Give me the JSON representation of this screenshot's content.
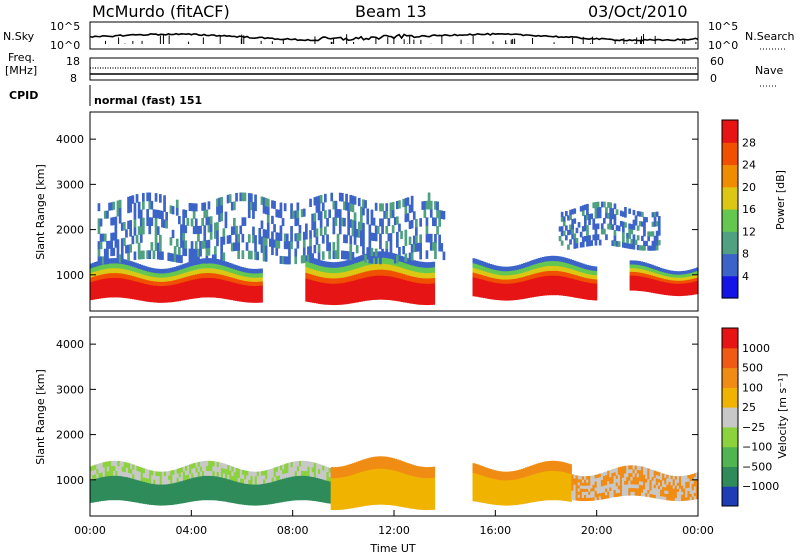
{
  "header": {
    "station": "McMurdo (fitACF)",
    "beam": "Beam 13",
    "date": "03/Oct/2010"
  },
  "noise_panel": {
    "left_label": "N.Sky",
    "left_ticks": [
      "10^5",
      "10^0"
    ],
    "right_ticks": [
      "10^5",
      "10^0"
    ],
    "right_label": "N.Search"
  },
  "freq_panel": {
    "left_label_1": "Freq.",
    "left_label_2": "[MHz]",
    "left_ticks": [
      "18",
      "8"
    ],
    "right_ticks": [
      "60",
      "0"
    ],
    "right_label": "Nave"
  },
  "cpid_panel": {
    "label": "CPID",
    "value": "normal (fast) 151"
  },
  "chart_data": [
    {
      "type": "heatmap",
      "name": "power",
      "xlabel": "",
      "ylabel": "Slant Range [km]",
      "xlim": [
        "00:00",
        "24:00"
      ],
      "ylim": [
        200,
        4600
      ],
      "y_ticks": [
        "1000",
        "2000",
        "3000",
        "4000"
      ],
      "colorbar": {
        "label": "Power [dB]",
        "ticks": [
          "28",
          "24",
          "20",
          "16",
          "12",
          "8",
          "4"
        ],
        "colors": [
          "#1414e6",
          "#3c64c8",
          "#50a082",
          "#64c850",
          "#dcc814",
          "#f08c00",
          "#f05000",
          "#e61414"
        ]
      },
      "bands": [
        {
          "t0": 0.0,
          "t1": 6.8,
          "r0": 450,
          "r1": 1250,
          "level": "high"
        },
        {
          "t0": 8.5,
          "t1": 13.6,
          "r0": 400,
          "r1": 1400,
          "level": "high"
        },
        {
          "t0": 15.1,
          "t1": 20.0,
          "r0": 500,
          "r1": 1300,
          "level": "high"
        },
        {
          "t0": 21.3,
          "t1": 24.0,
          "r0": 600,
          "r1": 1200,
          "level": "high"
        },
        {
          "t0": 0.3,
          "t1": 14.0,
          "r0": 1300,
          "r1": 2700,
          "level": "low"
        },
        {
          "t0": 18.5,
          "t1": 22.5,
          "r0": 1600,
          "r1": 2500,
          "level": "low"
        }
      ]
    },
    {
      "type": "heatmap",
      "name": "velocity",
      "xlabel": "Time UT",
      "ylabel": "Slant Range [km]",
      "x_ticks": [
        "00:00",
        "04:00",
        "08:00",
        "12:00",
        "16:00",
        "20:00",
        "00:00"
      ],
      "y_ticks": [
        "1000",
        "2000",
        "3000",
        "4000"
      ],
      "colorbar": {
        "label": "Velocity [m s⁻¹]",
        "ticks": [
          "1000",
          "500",
          "100",
          "25",
          "−25",
          "−100",
          "−500",
          "−1000"
        ],
        "colors": [
          "#1e3cb4",
          "#2f8c5a",
          "#50b450",
          "#8cd23c",
          "#c8c8c8",
          "#f0b400",
          "#f08c14",
          "#f05a14",
          "#e61414"
        ]
      },
      "bands": [
        {
          "t0": 0.0,
          "t1": 9.5,
          "r0": 500,
          "r1": 1300,
          "level": "green"
        },
        {
          "t0": 9.5,
          "t1": 13.6,
          "r0": 400,
          "r1": 1400,
          "level": "orange"
        },
        {
          "t0": 15.1,
          "t1": 19.0,
          "r0": 500,
          "r1": 1300,
          "level": "orange"
        },
        {
          "t0": 19.0,
          "t1": 24.0,
          "r0": 600,
          "r1": 1200,
          "level": "mixed"
        }
      ]
    }
  ],
  "colors": {
    "axis": "#000000",
    "background": "#ffffff"
  }
}
